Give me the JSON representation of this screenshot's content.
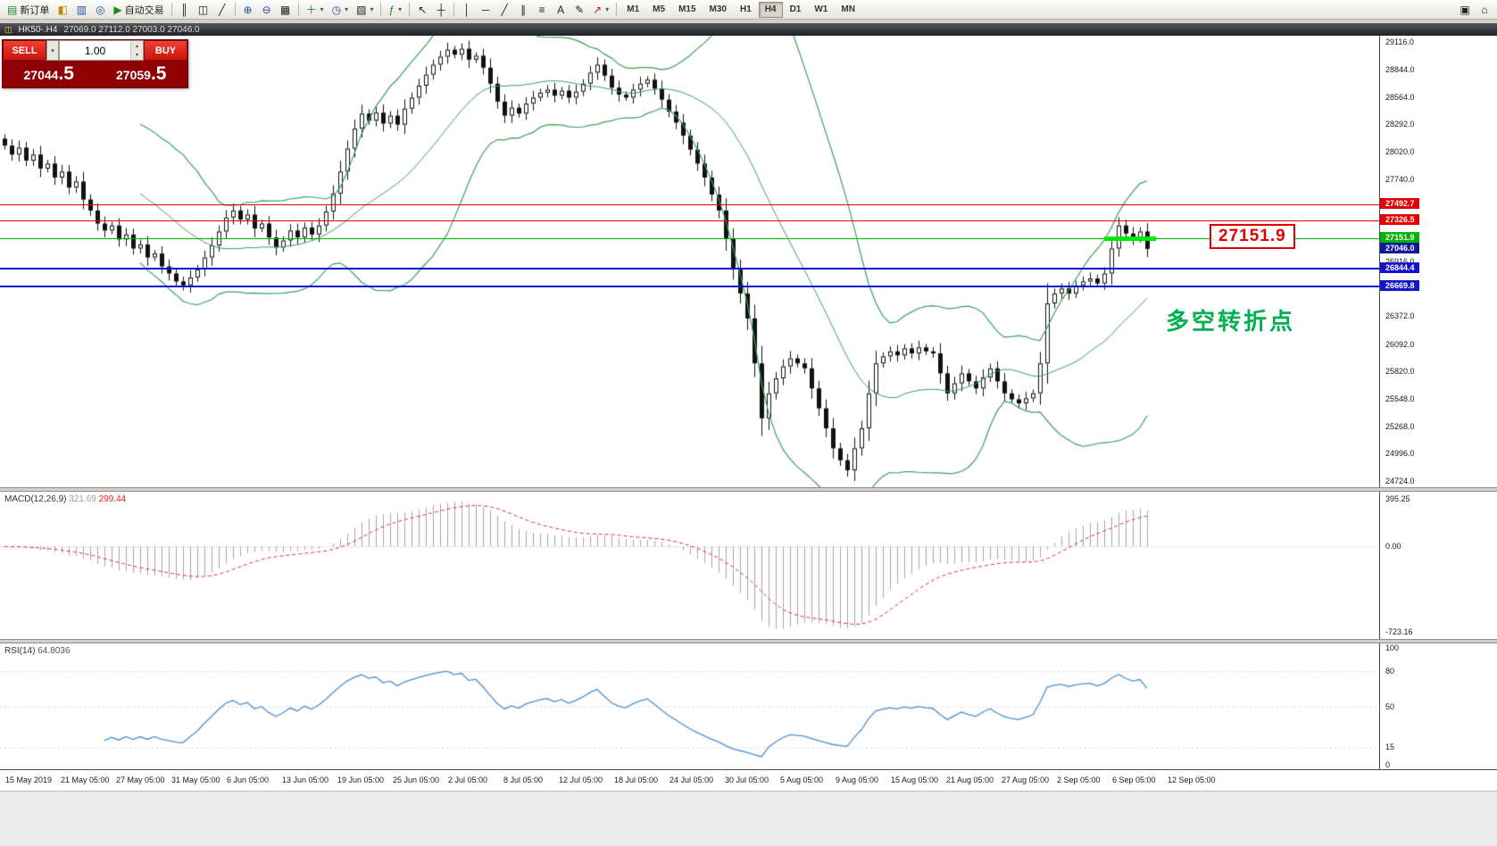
{
  "toolbar": {
    "new_order": "新订单",
    "auto_trading": "自动交易",
    "timeframes": [
      "M1",
      "M5",
      "M15",
      "M30",
      "H1",
      "H4",
      "D1",
      "W1",
      "MN"
    ],
    "active_timeframe": "H4"
  },
  "chart_header": {
    "title": "HK50-.H4",
    "ohlc": "27069.0 27112.0 27003.0 27046.0"
  },
  "one_click": {
    "sell_label": "SELL",
    "buy_label": "BUY",
    "volume": "1.00",
    "sell_price": "27044",
    "sell_fraction": ".5",
    "buy_price": "27059",
    "buy_fraction": ".5"
  },
  "annotation": "多空转折点",
  "callout_price": "27151.9",
  "macd_panel": {
    "label": "MACD(12,26,9)",
    "value_macd": "321.69",
    "value_signal": "299.44",
    "axis": [
      "395.25",
      "0.00",
      "-723.16"
    ]
  },
  "rsi_panel": {
    "label": "RSI(14)",
    "value": "64.8036",
    "axis": [
      "100",
      "80",
      "50",
      "15",
      "0"
    ]
  },
  "price_axis_labels": [
    "29116.0",
    "28844.0",
    "28564.0",
    "28292.0",
    "28020.0",
    "27740.0",
    "26916.0",
    "26372.0",
    "26092.0",
    "25820.0",
    "25548.0",
    "25268.0",
    "24996.0",
    "24724.0"
  ],
  "time_axis_labels": [
    "15 May 2019",
    "21 May 05:00",
    "27 May 05:00",
    "31 May 05:00",
    "6 Jun 05:00",
    "13 Jun 05:00",
    "19 Jun 05:00",
    "25 Jun 05:00",
    "2 Jul 05:00",
    "8 Jul 05:00",
    "12 Jul 05:00",
    "18 Jul 05:00",
    "24 Jul 05:00",
    "30 Jul 05:00",
    "5 Aug 05:00",
    "9 Aug 05:00",
    "15 Aug 05:00",
    "21 Aug 05:00",
    "27 Aug 05:00",
    "2 Sep 05:00",
    "6 Sep 05:00",
    "12 Sep 05:00"
  ],
  "levels": [
    {
      "name": "resistance-upper",
      "label": "27492.7",
      "value": 27492.7,
      "color": "#e10000",
      "thickness": 1
    },
    {
      "name": "resistance-lower",
      "label": "27326.5",
      "value": 27326.5,
      "color": "#e10000",
      "thickness": 1
    },
    {
      "name": "pivot-green",
      "label": "27151.9",
      "value": 27151.9,
      "color": "#00b300",
      "thickness": 1
    },
    {
      "name": "support-upper",
      "label": "26844.4",
      "value": 26844.4,
      "color": "#1414cc",
      "thickness": 2
    },
    {
      "name": "support-lower",
      "label": "26669.8",
      "value": 26669.8,
      "color": "#1414cc",
      "thickness": 2
    }
  ],
  "current_price": {
    "label": "27046.0",
    "value": 27046.0
  },
  "colors": {
    "accent_red": "#e10000",
    "line_green": "#00b300",
    "bright_green": "#00e800",
    "line_blue": "#1414cc",
    "current_price_bg": "#10189e",
    "bollinger": "#3aa05c",
    "macd_histogram": "#a6a6a6",
    "macd_signal": "#e03030",
    "rsi_line": "#4a8fd4",
    "annotation_green": "#00b050",
    "trade_red": "#e21414",
    "trade_panel_dark": "#8f0005"
  },
  "chart_data": {
    "type": "candlestick",
    "symbol": "HK50-",
    "timeframe": "H4",
    "current_ohlc": {
      "open": 27069.0,
      "high": 27112.0,
      "low": 27003.0,
      "close": 27046.0
    },
    "y_axis_range": [
      24724,
      29116
    ],
    "first_open": 28150,
    "closes": [
      28080,
      27990,
      28060,
      27930,
      27990,
      27850,
      27900,
      27760,
      27820,
      27660,
      27720,
      27540,
      27430,
      27300,
      27230,
      27280,
      27140,
      27190,
      27050,
      27090,
      26960,
      27000,
      26870,
      26800,
      26720,
      26680,
      26760,
      26840,
      26960,
      27080,
      27220,
      27360,
      27430,
      27340,
      27390,
      27250,
      27300,
      27160,
      27060,
      27130,
      27230,
      27160,
      27260,
      27190,
      27280,
      27420,
      27600,
      27820,
      28050,
      28250,
      28400,
      28330,
      28410,
      28300,
      28380,
      28290,
      28450,
      28560,
      28680,
      28790,
      28890,
      28970,
      29040,
      28990,
      29050,
      28940,
      28980,
      28860,
      28700,
      28520,
      28380,
      28460,
      28400,
      28500,
      28560,
      28610,
      28640,
      28580,
      28630,
      28560,
      28620,
      28700,
      28810,
      28890,
      28780,
      28660,
      28590,
      28560,
      28640,
      28700,
      28740,
      28650,
      28540,
      28420,
      28310,
      28180,
      28040,
      27900,
      27760,
      27590,
      27430,
      27150,
      26840,
      26600,
      26350,
      25900,
      25350,
      25600,
      25750,
      25870,
      25950,
      25900,
      25850,
      25650,
      25450,
      25250,
      25050,
      24930,
      24830,
      25050,
      25250,
      25600,
      25900,
      25970,
      26020,
      25980,
      26050,
      26000,
      26060,
      26020,
      26000,
      25800,
      25600,
      25700,
      25800,
      25720,
      25650,
      25760,
      25850,
      25720,
      25600,
      25540,
      25500,
      25550,
      25600,
      25900,
      26500,
      26600,
      26650,
      26600,
      26680,
      26720,
      26750,
      26700,
      26800,
      27050,
      27280,
      27200,
      27150,
      27220,
      27046
    ],
    "indicators": {
      "bollinger": {
        "period": 20,
        "deviation": 2
      },
      "macd": {
        "fast": 12,
        "slow": 26,
        "signal": 9,
        "current_values": [
          321.69,
          299.44
        ],
        "axis_scale": [
          395.25,
          0.0,
          -723.16
        ]
      },
      "rsi": {
        "period": 14,
        "current_value": 64.8036,
        "scale_levels": [
          100,
          80,
          50,
          15,
          0
        ]
      }
    },
    "horizontal_levels": [
      27492.7,
      27326.5,
      27151.9,
      26844.4,
      26669.8
    ],
    "current_price": 27046.0
  }
}
